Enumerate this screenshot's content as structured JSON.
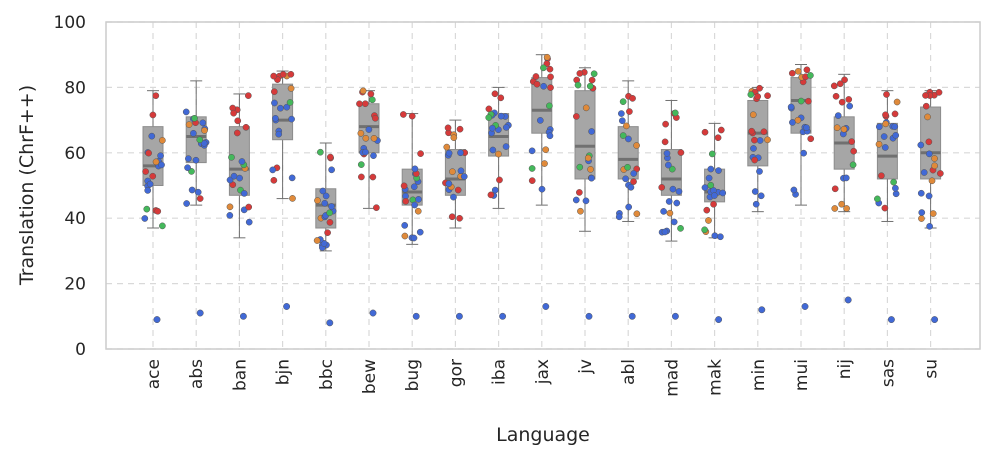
{
  "chart_data": {
    "type": "box",
    "title": "",
    "xlabel": "Language",
    "ylabel": "Translation (ChrF++)",
    "ylim": [
      0,
      100
    ],
    "yticks": [
      0,
      20,
      40,
      60,
      80,
      100
    ],
    "grid": true,
    "point_colors": {
      "blue": "#4169d6",
      "red": "#d63a3a",
      "orange": "#e08a3a",
      "green": "#44b85b"
    },
    "box_color": "#a6a6a6",
    "categories": [
      "ace",
      "abs",
      "ban",
      "bjn",
      "bbc",
      "bew",
      "bug",
      "gor",
      "iba",
      "jax",
      "jv",
      "abl",
      "mad",
      "mak",
      "min",
      "mui",
      "nij",
      "sas",
      "su"
    ],
    "boxes": [
      {
        "q1": 50,
        "median": 56,
        "q3": 68,
        "whislo": 37,
        "whishi": 79,
        "outliers": [
          9
        ]
      },
      {
        "q1": 57,
        "median": 65,
        "q3": 71,
        "whislo": 44,
        "whishi": 82,
        "outliers": [
          11
        ]
      },
      {
        "q1": 47,
        "median": 55,
        "q3": 68,
        "whislo": 34,
        "whishi": 78,
        "outliers": [
          10
        ]
      },
      {
        "q1": 64,
        "median": 70,
        "q3": 81,
        "whislo": 46,
        "whishi": 85,
        "outliers": [
          13
        ]
      },
      {
        "q1": 37,
        "median": 44,
        "q3": 49,
        "whislo": 30,
        "whishi": 63,
        "outliers": [
          8
        ]
      },
      {
        "q1": 60,
        "median": 68,
        "q3": 75,
        "whislo": 43,
        "whishi": 79,
        "outliers": [
          11
        ]
      },
      {
        "q1": 44,
        "median": 48,
        "q3": 55,
        "whislo": 32,
        "whishi": 72,
        "outliers": [
          10
        ]
      },
      {
        "q1": 47,
        "median": 52,
        "q3": 61,
        "whislo": 37,
        "whishi": 70,
        "outliers": [
          10
        ]
      },
      {
        "q1": 59,
        "median": 65,
        "q3": 72,
        "whislo": 43,
        "whishi": 80,
        "outliers": [
          10
        ]
      },
      {
        "q1": 66,
        "median": 73,
        "q3": 83,
        "whislo": 44,
        "whishi": 90,
        "outliers": [
          13
        ]
      },
      {
        "q1": 52,
        "median": 62,
        "q3": 79,
        "whislo": 36,
        "whishi": 86,
        "outliers": [
          10
        ]
      },
      {
        "q1": 52,
        "median": 58,
        "q3": 68,
        "whislo": 39,
        "whishi": 82,
        "outliers": [
          10
        ]
      },
      {
        "q1": 47,
        "median": 52,
        "q3": 61,
        "whislo": 33,
        "whishi": 76,
        "outliers": [
          10
        ]
      },
      {
        "q1": 45,
        "median": 48,
        "q3": 55,
        "whislo": 34,
        "whishi": 69,
        "outliers": [
          9
        ]
      },
      {
        "q1": 56,
        "median": 66,
        "q3": 76,
        "whislo": 42,
        "whishi": 80,
        "outliers": [
          12
        ]
      },
      {
        "q1": 66,
        "median": 76,
        "q3": 83,
        "whislo": 44,
        "whishi": 87,
        "outliers": [
          13
        ]
      },
      {
        "q1": 55,
        "median": 63,
        "q3": 71,
        "whislo": 42,
        "whishi": 84,
        "outliers": [
          15
        ]
      },
      {
        "q1": 52,
        "median": 59,
        "q3": 69,
        "whislo": 39,
        "whishi": 79,
        "outliers": [
          9
        ]
      },
      {
        "q1": 52,
        "median": 60,
        "q3": 74,
        "whislo": 37,
        "whishi": 79,
        "outliers": [
          9
        ]
      }
    ]
  }
}
